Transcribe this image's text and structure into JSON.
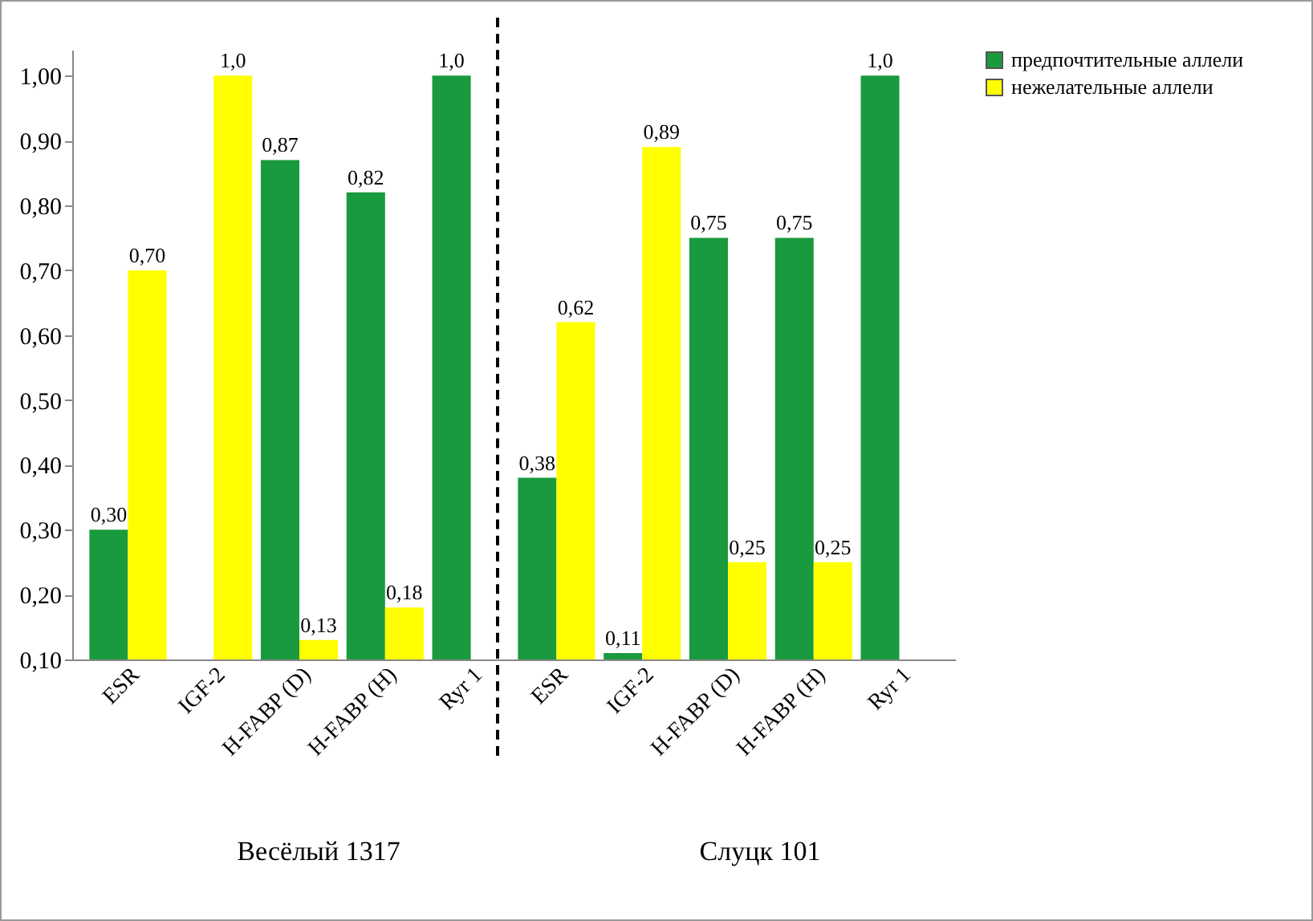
{
  "chart_data": {
    "type": "bar",
    "categories": [
      "ESR",
      "IGF-2",
      "H-FABP (D)",
      "H-FABP (H)",
      "Ryr 1",
      "ESR",
      "IGF-2",
      "H-FABP (D)",
      "H-FABP (H)",
      "Ryr 1"
    ],
    "series": [
      {
        "name": "предпочтительные аллели",
        "color": "#1a9a3e",
        "values": [
          0.3,
          null,
          0.87,
          0.82,
          1.0,
          0.38,
          0.11,
          0.75,
          0.75,
          1.0
        ],
        "value_labels": [
          "0,30",
          null,
          "0,87",
          "0,82",
          "1,0",
          "0,38",
          "0,11",
          "0,75",
          "0,75",
          "1,0"
        ]
      },
      {
        "name": "нежелательные аллели",
        "color": "#ffff00",
        "values": [
          0.7,
          1.0,
          0.13,
          0.18,
          null,
          0.62,
          0.89,
          0.25,
          0.25,
          null
        ],
        "value_labels": [
          "0,70",
          "1,0",
          "0,13",
          "0,18",
          null,
          "0,62",
          "0,89",
          "0,25",
          "0,25",
          null
        ]
      }
    ],
    "ylim": [
      0.1,
      1.04
    ],
    "yticks": [
      {
        "value": 0.1,
        "label": "0,10"
      },
      {
        "value": 0.2,
        "label": "0,20"
      },
      {
        "value": 0.3,
        "label": "0,30"
      },
      {
        "value": 0.4,
        "label": "0,40"
      },
      {
        "value": 0.5,
        "label": "0,50"
      },
      {
        "value": 0.6,
        "label": "0,60"
      },
      {
        "value": 0.7,
        "label": "0,70"
      },
      {
        "value": 0.8,
        "label": "0,80"
      },
      {
        "value": 0.9,
        "label": "0,90"
      },
      {
        "value": 1.0,
        "label": "1,00"
      }
    ],
    "annotations": [
      "Весёлый 1317",
      "Слуцк 101"
    ],
    "grid": false,
    "legend": "right"
  }
}
